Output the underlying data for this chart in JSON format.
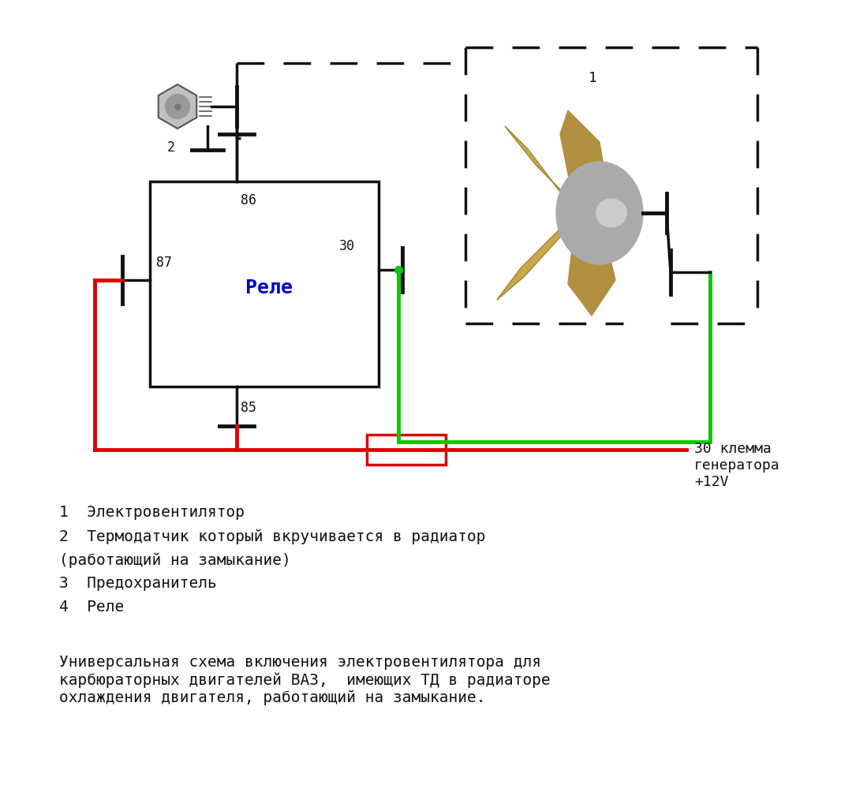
{
  "bg_color": "#ffffff",
  "relay_label": "Реле",
  "relay_label_color": "#0000cc",
  "text_lines": [
    "1  Электровентилятор",
    "2  Термодатчик который вкручивается в радиатор",
    "(работающий на замыкание)",
    "3  Предохранитель",
    "4  Реле"
  ],
  "bottom_text": "Универсальная схема включения электровентилятора для\nкарбюраторных двигателей ВАЗ,  имеющих ТД в радиаторе\nохлаждения двигателя, работающий на замыкание.",
  "label_30_klema": "30 клемма\nгенератора\n+12V",
  "label_1": "1",
  "label_2": "2"
}
